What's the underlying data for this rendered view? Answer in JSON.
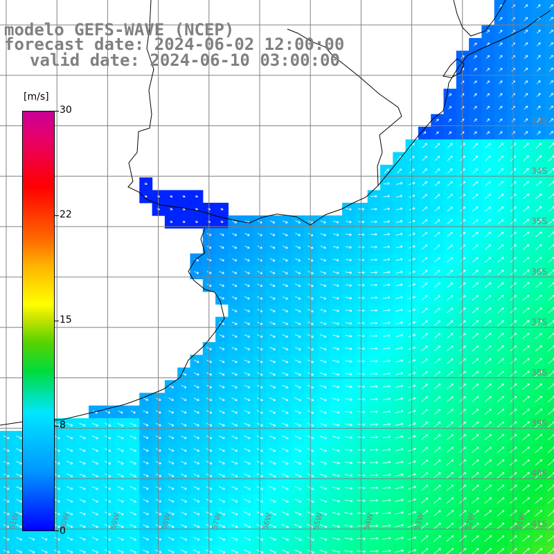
{
  "title": {
    "line1": "modelo GEFS-WAVE (NCEP)",
    "line2": "forecast date: 2024-06-02 12:00:00",
    "line3": "valid date: 2024-06-10 03:00:00"
  },
  "colorbar": {
    "unit": "[m/s]",
    "ticks": [
      "30",
      "22",
      "15",
      "8",
      "0"
    ],
    "tick_values": [
      30,
      22,
      15,
      8,
      0
    ],
    "min": 0,
    "max": 30
  },
  "grid": {
    "lat_labels": [
      "33S",
      "34S",
      "35S",
      "36S",
      "37S",
      "38S",
      "39S",
      "40S",
      "41S"
    ],
    "lon_labels": [
      "61W",
      "60W",
      "59W",
      "58W",
      "57W",
      "56W",
      "55W",
      "54W",
      "53W",
      "52W",
      "51W"
    ]
  },
  "colors": {
    "land": "#ffffff",
    "coastline": "#000000",
    "gridline": "#808080",
    "arrow": "#ffffff",
    "title_text": "#808080"
  }
}
